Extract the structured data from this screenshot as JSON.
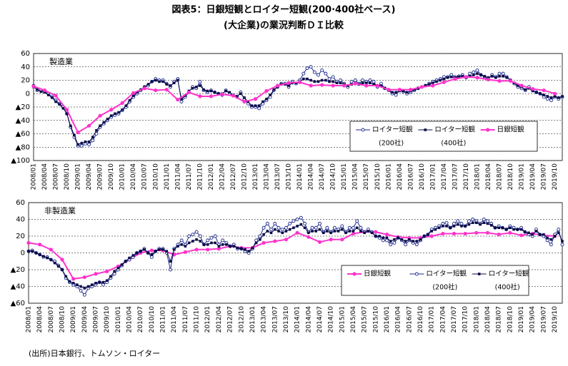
{
  "title": "図表5：日銀短観とロイター短観(200·400社ベース)",
  "subtitle": "(大企業)の業況判断ＤＩ比較",
  "source": "(出所)日本銀行、トムソン・ロイター",
  "chart_data": [
    {
      "type": "line",
      "panel_label": "製造業",
      "ylim": [
        -100,
        60
      ],
      "yticks": [
        60,
        40,
        20,
        0,
        {
          "value": -20,
          "label": "▲20"
        },
        {
          "value": -40,
          "label": "▲40"
        },
        {
          "value": -60,
          "label": "▲60"
        },
        {
          "value": -80,
          "label": "▲80"
        },
        {
          "value": -100,
          "label": "▲100"
        }
      ],
      "grid": true,
      "legend": "lower right",
      "categories": [
        "2008/01",
        null,
        null,
        "2008/04",
        null,
        null,
        "2008/07",
        null,
        null,
        "2008/10",
        null,
        null,
        "2009/01",
        null,
        null,
        "2009/04",
        null,
        null,
        "2009/07",
        null,
        null,
        "2009/10",
        null,
        null,
        "2010/01",
        null,
        null,
        "2010/04",
        null,
        null,
        "2010/07",
        null,
        null,
        "2010/10",
        null,
        null,
        "2011/01",
        null,
        null,
        "2011/04",
        null,
        null,
        "2011/07",
        null,
        null,
        "2011/10",
        null,
        null,
        "2012/01",
        null,
        null,
        "2012/04",
        null,
        null,
        "2012/07",
        null,
        null,
        "2012/10",
        null,
        null,
        "2013/01",
        null,
        null,
        "2013/04",
        null,
        null,
        "2013/07",
        null,
        null,
        "2013/10",
        null,
        null,
        "2014/01",
        null,
        null,
        "2014/04",
        null,
        null,
        "2014/07",
        null,
        null,
        "2014/10",
        null,
        null,
        "2015/01",
        null,
        null,
        "2015/04",
        null,
        null,
        "2015/07",
        null,
        null,
        "2015/10",
        null,
        null,
        "2016/01",
        null,
        null,
        "2016/04",
        null,
        null,
        "2016/07",
        null,
        null,
        "2016/10",
        null,
        null,
        "2017/01",
        null,
        null,
        "2017/04",
        null,
        null,
        "2017/07",
        null,
        null,
        "2017/10",
        null,
        null,
        "2018/01",
        null,
        null,
        "2018/04",
        null,
        null,
        "2018/07",
        null,
        null,
        "2018/10",
        null,
        null,
        "2019/01",
        null,
        null,
        "2019/04",
        null,
        null,
        "2019/07",
        null,
        null,
        "2019/10",
        null,
        null
      ],
      "series": [
        {
          "name": "ロイター短観",
          "name_sub": "(200社)",
          "color": "#1c2a8c",
          "marker": "circle-open",
          "values": [
            12,
            5,
            5,
            3,
            0,
            -5,
            -10,
            -15,
            -20,
            -30,
            -50,
            -65,
            -78,
            -78,
            -75,
            -76,
            -70,
            -60,
            -50,
            -45,
            -40,
            -35,
            -32,
            -30,
            -25,
            -20,
            -12,
            -5,
            0,
            5,
            10,
            12,
            18,
            22,
            20,
            20,
            15,
            10,
            18,
            22,
            -12,
            -5,
            2,
            10,
            8,
            18,
            5,
            2,
            5,
            2,
            0,
            -2,
            5,
            0,
            -3,
            -5,
            2,
            -8,
            -15,
            -20,
            -20,
            -22,
            -15,
            -10,
            -5,
            5,
            10,
            15,
            15,
            10,
            18,
            15,
            20,
            30,
            38,
            40,
            32,
            28,
            35,
            30,
            22,
            25,
            18,
            20,
            15,
            10,
            18,
            20,
            15,
            20,
            18,
            20,
            18,
            10,
            15,
            8,
            5,
            0,
            -2,
            5,
            3,
            0,
            2,
            5,
            8,
            10,
            12,
            15,
            18,
            20,
            22,
            25,
            25,
            28,
            25,
            26,
            28,
            24,
            30,
            32,
            35,
            28,
            25,
            22,
            28,
            25,
            30,
            30,
            25,
            20,
            15,
            10,
            8,
            5,
            10,
            5,
            2,
            0,
            -5,
            -8,
            -10,
            -5,
            -8,
            -5
          ]
        },
        {
          "name": "ロイター短観",
          "name_sub": "(400社)",
          "color": "#0b0b4a",
          "marker": "square",
          "values": [
            10,
            6,
            3,
            2,
            -2,
            -6,
            -12,
            -16,
            -22,
            -30,
            -48,
            -62,
            -76,
            -74,
            -72,
            -72,
            -65,
            -55,
            -48,
            -43,
            -38,
            -33,
            -30,
            -28,
            -24,
            -18,
            -10,
            -3,
            2,
            6,
            10,
            14,
            18,
            20,
            18,
            18,
            14,
            12,
            16,
            20,
            -8,
            -3,
            4,
            8,
            10,
            12,
            6,
            4,
            4,
            2,
            0,
            0,
            4,
            2,
            -2,
            -4,
            0,
            -6,
            -12,
            -18,
            -18,
            -18,
            -12,
            -8,
            -2,
            6,
            10,
            14,
            14,
            12,
            16,
            16,
            18,
            22,
            22,
            20,
            18,
            18,
            20,
            20,
            18,
            18,
            16,
            16,
            14,
            12,
            14,
            16,
            14,
            16,
            16,
            16,
            14,
            12,
            12,
            8,
            6,
            2,
            2,
            4,
            4,
            2,
            4,
            6,
            8,
            10,
            12,
            14,
            16,
            18,
            20,
            22,
            24,
            25,
            24,
            25,
            26,
            24,
            26,
            28,
            30,
            28,
            26,
            24,
            26,
            24,
            26,
            26,
            24,
            20,
            16,
            12,
            10,
            6,
            8,
            4,
            2,
            0,
            -2,
            -4,
            -6,
            -4,
            -6,
            -4
          ]
        },
        {
          "name": "日銀短観",
          "color": "#ff33cc",
          "marker": "circle",
          "x": [
            "2008/01",
            "2008/04",
            "2008/07",
            "2008/10",
            "2009/01",
            "2009/04",
            "2009/07",
            "2009/10",
            "2010/01",
            "2010/04",
            "2010/07",
            "2010/10",
            "2011/01",
            "2011/04",
            "2011/07",
            "2011/10",
            "2012/01",
            "2012/04",
            "2012/07",
            "2012/10",
            "2013/01",
            "2013/04",
            "2013/07",
            "2013/10",
            "2014/01",
            "2014/04",
            "2014/07",
            "2014/10",
            "2015/01",
            "2015/04",
            "2015/07",
            "2015/10",
            "2016/01",
            "2016/04",
            "2016/07",
            "2016/10",
            "2017/01",
            "2017/04",
            "2017/07",
            "2017/10",
            "2018/01",
            "2018/04",
            "2018/07",
            "2018/10",
            "2019/01",
            "2019/04",
            "2019/07",
            "2019/10"
          ],
          "values": [
            11,
            5,
            -3,
            -24,
            -58,
            -48,
            -33,
            -24,
            -14,
            1,
            8,
            5,
            6,
            -9,
            2,
            -4,
            -4,
            -1,
            -3,
            -12,
            -8,
            4,
            12,
            16,
            17,
            12,
            13,
            12,
            12,
            15,
            12,
            12,
            6,
            6,
            6,
            10,
            12,
            17,
            22,
            25,
            24,
            21,
            19,
            19,
            12,
            7,
            5,
            0
          ]
        }
      ]
    },
    {
      "type": "line",
      "panel_label": "非製造業",
      "ylim": [
        -60,
        60
      ],
      "yticks": [
        60,
        40,
        20,
        0,
        {
          "value": -20,
          "label": "▲20"
        },
        {
          "value": -40,
          "label": "▲40"
        },
        {
          "value": -60,
          "label": "▲60"
        }
      ],
      "grid": true,
      "legend": "lower right",
      "categories": [
        "2008/01",
        null,
        null,
        "2008/04",
        null,
        null,
        "2008/07",
        null,
        null,
        "2008/10",
        null,
        null,
        "2009/01",
        null,
        null,
        "2009/04",
        null,
        null,
        "2009/07",
        null,
        null,
        "2009/10",
        null,
        null,
        "2010/01",
        null,
        null,
        "2010/04",
        null,
        null,
        "2010/07",
        null,
        null,
        "2010/10",
        null,
        null,
        "2011/01",
        null,
        null,
        "2011/04",
        null,
        null,
        "2011/07",
        null,
        null,
        "2011/10",
        null,
        null,
        "2012/01",
        null,
        null,
        "2012/04",
        null,
        null,
        "2012/07",
        null,
        null,
        "2012/10",
        null,
        null,
        "2013/01",
        null,
        null,
        "2013/04",
        null,
        null,
        "2013/07",
        null,
        null,
        "2013/10",
        null,
        null,
        "2014/01",
        null,
        null,
        "2014/04",
        null,
        null,
        "2014/07",
        null,
        null,
        "2014/10",
        null,
        null,
        "2015/01",
        null,
        null,
        "2015/04",
        null,
        null,
        "2015/07",
        null,
        null,
        "2015/10",
        null,
        null,
        "2016/01",
        null,
        null,
        "2016/04",
        null,
        null,
        "2016/07",
        null,
        null,
        "2016/10",
        null,
        null,
        "2017/01",
        null,
        null,
        "2017/04",
        null,
        null,
        "2017/07",
        null,
        null,
        "2017/10",
        null,
        null,
        "2018/01",
        null,
        null,
        "2018/04",
        null,
        null,
        "2018/07",
        null,
        null,
        "2018/10",
        null,
        null,
        "2019/01",
        null,
        null,
        "2019/04",
        null,
        null,
        "2019/07",
        null,
        null,
        "2019/10",
        null,
        null
      ],
      "series": [
        {
          "name": "日銀短観",
          "color": "#ff33cc",
          "marker": "circle",
          "x": [
            "2008/01",
            "2008/04",
            "2008/07",
            "2008/10",
            "2009/01",
            "2009/04",
            "2009/07",
            "2009/10",
            "2010/01",
            "2010/04",
            "2010/07",
            "2010/10",
            "2011/01",
            "2011/04",
            "2011/07",
            "2011/10",
            "2012/01",
            "2012/04",
            "2012/07",
            "2012/10",
            "2013/01",
            "2013/04",
            "2013/07",
            "2013/10",
            "2014/01",
            "2014/04",
            "2014/07",
            "2014/10",
            "2015/01",
            "2015/04",
            "2015/07",
            "2015/10",
            "2016/01",
            "2016/04",
            "2016/07",
            "2016/10",
            "2017/01",
            "2017/04",
            "2017/07",
            "2017/10",
            "2018/01",
            "2018/04",
            "2018/07",
            "2018/10",
            "2019/01",
            "2019/04",
            "2019/07",
            "2019/10"
          ],
          "values": [
            12,
            10,
            4,
            -8,
            -31,
            -29,
            -25,
            -22,
            -16,
            -8,
            0,
            3,
            3,
            -2,
            1,
            4,
            4,
            5,
            8,
            6,
            6,
            12,
            14,
            16,
            24,
            19,
            13,
            16,
            16,
            23,
            25,
            25,
            22,
            19,
            18,
            18,
            20,
            23,
            23,
            23,
            24,
            24,
            22,
            24,
            21,
            23,
            21,
            20
          ]
        },
        {
          "name": "ロイター短観",
          "name_sub": "(200社)",
          "color": "#1c2a8c",
          "marker": "circle-open",
          "values": [
            2,
            3,
            0,
            -2,
            -5,
            -5,
            -8,
            -10,
            -15,
            -20,
            -30,
            -35,
            -38,
            -40,
            -45,
            -50,
            -42,
            -40,
            -38,
            -35,
            -38,
            -35,
            -30,
            -25,
            -20,
            -15,
            -10,
            -8,
            -5,
            0,
            2,
            5,
            0,
            -5,
            2,
            5,
            5,
            0,
            -20,
            5,
            10,
            15,
            10,
            20,
            22,
            25,
            20,
            10,
            15,
            18,
            20,
            10,
            15,
            12,
            8,
            10,
            5,
            5,
            2,
            0,
            5,
            15,
            20,
            30,
            35,
            28,
            35,
            30,
            28,
            30,
            35,
            38,
            40,
            42,
            35,
            25,
            30,
            30,
            35,
            25,
            30,
            25,
            30,
            28,
            32,
            25,
            30,
            30,
            38,
            30,
            25,
            28,
            25,
            20,
            18,
            15,
            15,
            10,
            12,
            18,
            15,
            10,
            15,
            12,
            10,
            15,
            20,
            22,
            28,
            30,
            32,
            35,
            36,
            30,
            35,
            38,
            35,
            32,
            38,
            40,
            38,
            35,
            40,
            38,
            35,
            30,
            32,
            30,
            28,
            32,
            30,
            28,
            30,
            25,
            22,
            20,
            28,
            22,
            20,
            15,
            10,
            22,
            28,
            10
          ]
        },
        {
          "name": "ロイター短観",
          "name_sub": "(400社)",
          "color": "#0b0b4a",
          "marker": "square",
          "values": [
            2,
            2,
            0,
            -2,
            -4,
            -6,
            -8,
            -12,
            -16,
            -20,
            -28,
            -34,
            -36,
            -38,
            -40,
            -42,
            -40,
            -38,
            -36,
            -35,
            -35,
            -33,
            -28,
            -22,
            -18,
            -14,
            -10,
            -6,
            -3,
            0,
            2,
            4,
            0,
            -2,
            2,
            4,
            4,
            2,
            -10,
            4,
            8,
            10,
            8,
            12,
            14,
            16,
            14,
            10,
            10,
            12,
            12,
            8,
            10,
            10,
            8,
            8,
            6,
            5,
            4,
            2,
            6,
            12,
            16,
            22,
            26,
            24,
            28,
            26,
            24,
            26,
            28,
            30,
            32,
            34,
            30,
            24,
            26,
            26,
            28,
            24,
            26,
            24,
            26,
            26,
            28,
            24,
            26,
            26,
            30,
            26,
            24,
            26,
            24,
            20,
            20,
            18,
            18,
            14,
            16,
            18,
            16,
            14,
            16,
            14,
            14,
            16,
            20,
            22,
            26,
            28,
            30,
            32,
            32,
            30,
            32,
            34,
            32,
            32,
            34,
            36,
            36,
            34,
            36,
            35,
            33,
            30,
            30,
            30,
            28,
            30,
            28,
            28,
            28,
            25,
            24,
            22,
            26,
            22,
            22,
            18,
            16,
            20,
            24,
            14
          ]
        }
      ]
    }
  ]
}
